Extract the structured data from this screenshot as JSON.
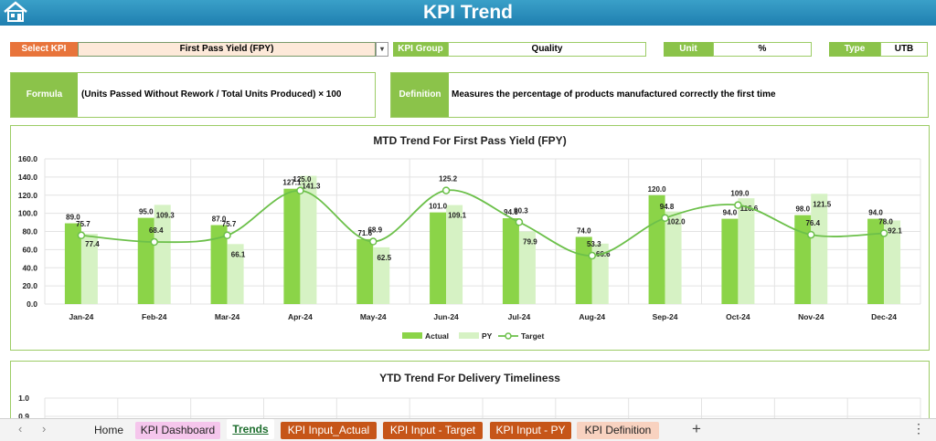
{
  "header": {
    "title": "KPI Trend"
  },
  "select_kpi": {
    "label": "Select KPI",
    "value": "First Pass Yield (FPY)"
  },
  "kpi_group": {
    "label": "KPI Group",
    "value": "Quality"
  },
  "unit": {
    "label": "Unit",
    "value": "%"
  },
  "type": {
    "label": "Type",
    "value": "UTB"
  },
  "formula": {
    "label": "Formula",
    "value": "(Units Passed Without Rework / Total Units Produced) × 100"
  },
  "definition": {
    "label": "Definition",
    "value": "Measures the percentage of products manufactured correctly the first time"
  },
  "colors": {
    "header": "#2a8fbe",
    "accent_orange": "#e8743b",
    "accent_green": "#8bc34a",
    "actual_bar": "#8bd448",
    "py_bar": "#d6f2c4",
    "target_line": "#6cc04a"
  },
  "chart_data": [
    {
      "type": "bar",
      "title": "MTD Trend For First Pass Yield (FPY)",
      "categories": [
        "Jan-24",
        "Feb-24",
        "Mar-24",
        "Apr-24",
        "May-24",
        "Jun-24",
        "Jul-24",
        "Aug-24",
        "Sep-24",
        "Oct-24",
        "Nov-24",
        "Dec-24"
      ],
      "series": [
        {
          "name": "Actual",
          "type": "bar",
          "values": [
            89.0,
            95.0,
            87.0,
            127.1,
            71.6,
            101.0,
            94.6,
            74.0,
            120.0,
            94.0,
            98.0,
            94.0
          ]
        },
        {
          "name": "PY",
          "type": "bar",
          "values": [
            77.4,
            109.3,
            66.1,
            141.3,
            62.5,
            109.1,
            79.9,
            66.6,
            102.0,
            116.6,
            121.5,
            92.1
          ]
        },
        {
          "name": "Target",
          "type": "line",
          "values": [
            75.7,
            68.4,
            75.7,
            125.0,
            68.9,
            125.2,
            90.3,
            53.3,
            94.8,
            109.0,
            76.4,
            78.0
          ]
        }
      ],
      "ylim": [
        0,
        160
      ],
      "yticks": [
        "0.0",
        "20.0",
        "40.0",
        "60.0",
        "80.0",
        "100.0",
        "120.0",
        "140.0",
        "160.0"
      ],
      "grid": true,
      "legend": "bottom"
    },
    {
      "type": "line",
      "title": "YTD Trend For Delivery Timeliness",
      "ylim": [
        0.9,
        1.0
      ],
      "yticks": [
        "1.0",
        "0.9"
      ]
    }
  ],
  "tabs": {
    "nav_prev": "‹",
    "nav_next": "›",
    "items": [
      {
        "label": "Home"
      },
      {
        "label": "KPI Dashboard"
      },
      {
        "label": "Trends"
      },
      {
        "label": "KPI Input_Actual"
      },
      {
        "label": "KPI Input - Target"
      },
      {
        "label": "KPI Input - PY"
      },
      {
        "label": "KPI Definition"
      }
    ],
    "add": "+",
    "more": "⋮"
  }
}
